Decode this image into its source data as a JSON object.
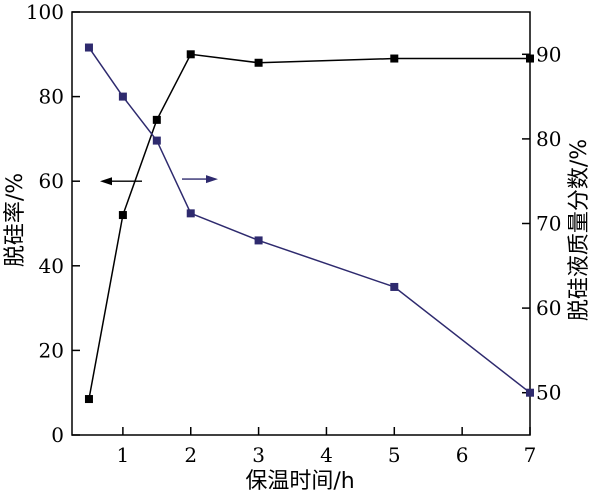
{
  "chart_data": {
    "type": "line",
    "xlabel": "保温时间/h",
    "ylabel_left": "脱硅率/%",
    "ylabel_right": "脱硅液质量分数/%",
    "x_ticks": [
      1,
      2,
      3,
      4,
      5,
      6,
      7
    ],
    "xlim": [
      0.25,
      7
    ],
    "y_left_ticks": [
      0,
      20,
      40,
      60,
      80,
      100
    ],
    "y_left_lim": [
      0,
      100
    ],
    "y_right_ticks": [
      50,
      60,
      70,
      80,
      90
    ],
    "y_right_lim": [
      45,
      95
    ],
    "grid": false,
    "series": [
      {
        "axis": "left",
        "color": "#000000",
        "marker": "square",
        "x": [
          0.5,
          1,
          1.5,
          2,
          3,
          5,
          7
        ],
        "y": [
          8.5,
          52,
          74.5,
          90,
          88,
          89,
          89
        ]
      },
      {
        "axis": "right",
        "color": "#2e2a6e",
        "marker": "square",
        "x": [
          0.5,
          1,
          1.5,
          2,
          3,
          5,
          7
        ],
        "y": [
          90.8,
          85,
          79.8,
          71.2,
          68,
          62.5,
          50
        ]
      }
    ],
    "annotations": [
      {
        "type": "arrow",
        "direction": "left",
        "points_to": "left-axis",
        "color": "#000000"
      },
      {
        "type": "arrow",
        "direction": "right",
        "points_to": "right-axis",
        "color": "#2e2a6e"
      }
    ]
  }
}
